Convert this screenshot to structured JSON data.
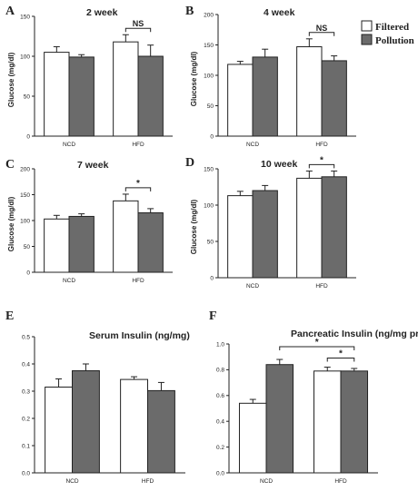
{
  "legend": {
    "items": [
      {
        "label": "Filtered",
        "color": "#ffffff"
      },
      {
        "label": "Pollution",
        "color": "#6b6b6b"
      }
    ]
  },
  "chart_data": [
    {
      "panel": "A",
      "type": "bar",
      "title": "2 week",
      "ylabel": "Glucose (mg/dl)",
      "ylim": [
        0,
        150
      ],
      "yticks": [
        0,
        50,
        100,
        150
      ],
      "categories": [
        "NCD",
        "HFD"
      ],
      "series": [
        {
          "name": "Filtered",
          "values": [
            105,
            118
          ],
          "errors": [
            7,
            9
          ]
        },
        {
          "name": "Pollution",
          "values": [
            99,
            100
          ],
          "errors": [
            3,
            14
          ]
        }
      ],
      "annotations": [
        {
          "label": "NS",
          "category": "HFD"
        }
      ]
    },
    {
      "panel": "B",
      "type": "bar",
      "title": "4 week",
      "ylabel": "Glucose (mg/dl)",
      "ylim": [
        0,
        200
      ],
      "yticks": [
        0,
        50,
        100,
        150,
        200
      ],
      "categories": [
        "NCD",
        "HFD"
      ],
      "series": [
        {
          "name": "Filtered",
          "values": [
            118,
            147
          ],
          "errors": [
            5,
            13
          ]
        },
        {
          "name": "Pollution",
          "values": [
            130,
            124
          ],
          "errors": [
            13,
            8
          ]
        }
      ],
      "annotations": [
        {
          "label": "NS",
          "category": "HFD"
        }
      ]
    },
    {
      "panel": "C",
      "type": "bar",
      "title": "7 week",
      "ylabel": "Glucose (mg/dl)",
      "ylim": [
        0,
        200
      ],
      "yticks": [
        0,
        50,
        100,
        150,
        200
      ],
      "categories": [
        "NCD",
        "HFD"
      ],
      "series": [
        {
          "name": "Filtered",
          "values": [
            103,
            138
          ],
          "errors": [
            7,
            13
          ]
        },
        {
          "name": "Pollution",
          "values": [
            108,
            115
          ],
          "errors": [
            5,
            8
          ]
        }
      ],
      "annotations": [
        {
          "label": "*",
          "category": "HFD"
        }
      ]
    },
    {
      "panel": "D",
      "type": "bar",
      "title": "10 week",
      "ylabel": "Glucose (mg/dl)",
      "ylim": [
        0,
        150
      ],
      "yticks": [
        0,
        50,
        100,
        150
      ],
      "categories": [
        "NCD",
        "HFD"
      ],
      "series": [
        {
          "name": "Filtered",
          "values": [
            113,
            137
          ],
          "errors": [
            6,
            10
          ]
        },
        {
          "name": "Pollution",
          "values": [
            120,
            139
          ],
          "errors": [
            7,
            8
          ]
        }
      ],
      "annotations": [
        {
          "label": "*",
          "category": "HFD"
        }
      ]
    },
    {
      "panel": "E",
      "type": "bar",
      "title": "Serum Insulin (ng/mg)",
      "ylabel": "",
      "ylim": [
        0,
        0.5
      ],
      "yticks": [
        0.0,
        0.1,
        0.2,
        0.3,
        0.4,
        0.5
      ],
      "tick_labels": [
        "0.0",
        "0.1",
        "0.2",
        "0.3",
        "0.4",
        "0.5"
      ],
      "categories": [
        "NCD",
        "HFD"
      ],
      "series": [
        {
          "name": "Filtered",
          "values": [
            0.315,
            0.343
          ],
          "errors": [
            0.03,
            0.01
          ]
        },
        {
          "name": "Pollution",
          "values": [
            0.375,
            0.302
          ],
          "errors": [
            0.025,
            0.03
          ]
        }
      ],
      "annotations": []
    },
    {
      "panel": "F",
      "type": "bar",
      "title": "Pancreatic Insulin (ng/mg pr)",
      "ylabel": "",
      "ylim": [
        0,
        1.0
      ],
      "yticks": [
        0.0,
        0.2,
        0.4,
        0.6,
        0.8,
        1.0
      ],
      "tick_labels": [
        "0.0",
        "0.2",
        "0.4",
        "0.6",
        "0.8",
        "1.0"
      ],
      "categories": [
        "NCD",
        "HFD"
      ],
      "series": [
        {
          "name": "Filtered",
          "values": [
            0.54,
            0.79
          ],
          "errors": [
            0.03,
            0.03
          ]
        },
        {
          "name": "Pollution",
          "values": [
            0.84,
            0.79
          ],
          "errors": [
            0.04,
            0.02
          ]
        }
      ],
      "annotations": [
        {
          "label": "*",
          "from": "NCD",
          "to": "HFD"
        },
        {
          "label": "*",
          "category": "HFD"
        }
      ]
    }
  ]
}
